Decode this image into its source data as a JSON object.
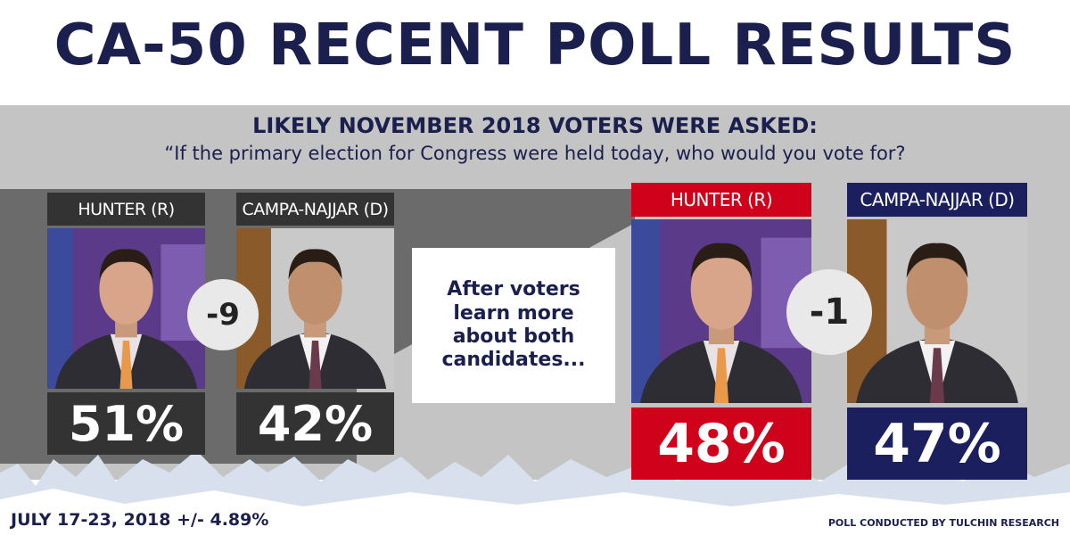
{
  "title": "CA-50 RECENT POLL RESULTS",
  "question": {
    "heading": "LIKELY NOVEMBER 2018 VOTERS WERE ASKED:",
    "text": "“If the primary election for Congress were held today, who would you vote for?"
  },
  "initial": {
    "candidates": [
      {
        "name": "HUNTER (R)",
        "share": "51%"
      },
      {
        "name": "CAMPA-NAJJAR (D)",
        "share": "42%"
      }
    ],
    "margin": "-9"
  },
  "transition": "After voters learn more about both candidates...",
  "informed": {
    "candidates": [
      {
        "name": "HUNTER (R)",
        "share": "48%"
      },
      {
        "name": "CAMPA-NAJJAR (D)",
        "share": "47%"
      }
    ],
    "margin": "-1"
  },
  "footer": {
    "dates": "JULY 17-23, 2018 +/- 4.89%",
    "source": "POLL CONDUCTED BY TULCHIN RESEARCH"
  }
}
